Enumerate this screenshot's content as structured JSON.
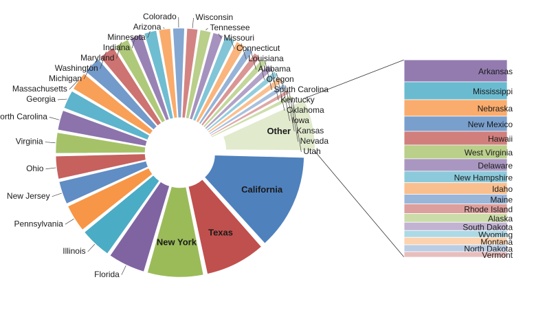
{
  "chart_data": {
    "type": "pie-of-bar",
    "categories": [
      "California",
      "Texas",
      "New York",
      "Florida",
      "Illinois",
      "Pennsylvania",
      "New Jersey",
      "Ohio",
      "Virginia",
      "North Carolina",
      "Georgia",
      "Massachusetts",
      "Michigan",
      "Washington",
      "Maryland",
      "Indiana",
      "Minnesota",
      "Arizona",
      "Colorado",
      "Wisconsin",
      "Tennessee",
      "Missouri",
      "Connecticut",
      "Louisiana",
      "Alabama",
      "Oregon",
      "South Carolina",
      "Kentucky",
      "Oklahoma",
      "Iowa",
      "Kansas",
      "Nevada",
      "Utah"
    ],
    "values": [
      13,
      8.3,
      7.7,
      5.2,
      4.4,
      3.9,
      3.3,
      3.3,
      3.0,
      2.9,
      2.7,
      2.7,
      2.6,
      2.4,
      2.1,
      1.9,
      1.9,
      1.8,
      1.8,
      1.7,
      1.7,
      1.6,
      1.6,
      1.5,
      1.2,
      1.2,
      1.1,
      1.1,
      1.0,
      1.0,
      0.9,
      0.8,
      0.8
    ],
    "colors": [
      "#4f81bd",
      "#c0504d",
      "#9bbb59",
      "#8064a2",
      "#4bacc6",
      "#f79646"
    ],
    "other": {
      "label": "Other",
      "categories": [
        "Arkansas",
        "Mississippi",
        "Nebraska",
        "New Mexico",
        "Hawaii",
        "West Virginia",
        "Delaware",
        "New Hampshire",
        "Idaho",
        "Maine",
        "Rhode Island",
        "Alaska",
        "South Dakota",
        "Wyoming",
        "Montana",
        "North Dakota",
        "Vermont"
      ],
      "values": [
        0.8,
        0.65,
        0.6,
        0.55,
        0.5,
        0.5,
        0.45,
        0.42,
        0.42,
        0.35,
        0.35,
        0.32,
        0.3,
        0.25,
        0.27,
        0.25,
        0.2
      ]
    }
  }
}
